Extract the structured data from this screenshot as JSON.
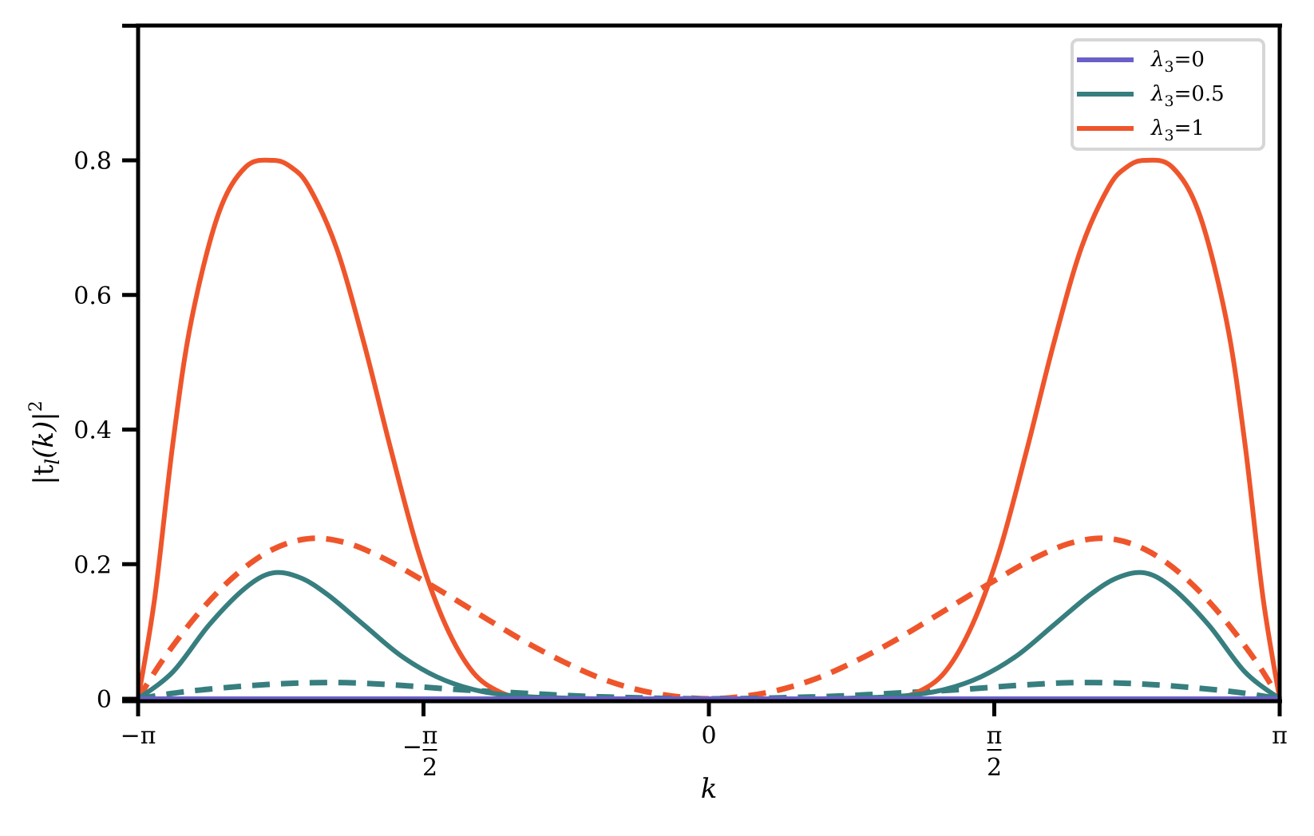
{
  "chart_data": {
    "type": "line",
    "title": "",
    "xlabel": "k",
    "ylabel": "|t_l(k)|^2",
    "xlim": [
      -3.14159,
      3.14159
    ],
    "ylim": [
      0,
      1.0
    ],
    "grid": false,
    "legend_position": "upper right",
    "x_ticks": [
      {
        "value": -3.14159,
        "label": "−π",
        "type": "plain"
      },
      {
        "value": -1.5708,
        "label": "−π/2",
        "type": "frac",
        "sign": "−",
        "num": "π",
        "den": "2"
      },
      {
        "value": 0,
        "label": "0",
        "type": "plain"
      },
      {
        "value": 1.5708,
        "label": "π/2",
        "type": "frac",
        "sign": "",
        "num": "π",
        "den": "2"
      },
      {
        "value": 3.14159,
        "label": "π",
        "type": "plain"
      }
    ],
    "y_ticks": [
      {
        "value": 0,
        "label": "0"
      },
      {
        "value": 0.2,
        "label": "0.2"
      },
      {
        "value": 0.4,
        "label": "0.4"
      },
      {
        "value": 0.6,
        "label": "0.6"
      },
      {
        "value": 0.8,
        "label": "0.8"
      },
      {
        "value": 1.0,
        "label": ""
      }
    ],
    "legend": [
      {
        "label": "λ₃=0",
        "color": "#6a5fc8"
      },
      {
        "label": "λ₃=0.5",
        "color": "#377e7f"
      },
      {
        "label": "λ₃=1",
        "color": "#ef552b"
      }
    ],
    "series": [
      {
        "name": "λ₃=0 (solid)",
        "style": "solid",
        "color": "#6a5fc8",
        "x": [
          -3.14159,
          3.14159
        ],
        "y": [
          0.0,
          0.0
        ]
      },
      {
        "name": "λ₃=0.5 (solid)",
        "style": "solid",
        "color": "#377e7f",
        "x": [
          -3.14159,
          -2.95,
          -2.75,
          -2.55,
          -2.4,
          -2.25,
          -2.1,
          -1.9,
          -1.7,
          -1.5,
          -1.3,
          -1.1,
          -0.9,
          -0.6,
          0,
          0.6,
          0.9,
          1.1,
          1.3,
          1.5,
          1.7,
          1.9,
          2.1,
          2.25,
          2.4,
          2.55,
          2.75,
          2.95,
          3.14159
        ],
        "y": [
          0.0,
          0.04,
          0.11,
          0.165,
          0.187,
          0.18,
          0.155,
          0.11,
          0.065,
          0.033,
          0.014,
          0.005,
          0.002,
          0.0,
          0.0,
          0.0,
          0.002,
          0.005,
          0.014,
          0.033,
          0.065,
          0.11,
          0.155,
          0.18,
          0.187,
          0.165,
          0.11,
          0.04,
          0.0
        ]
      },
      {
        "name": "λ₃=0.5 (dashed)",
        "style": "dashed",
        "color": "#377e7f",
        "x": [
          -3.14159,
          -2.9,
          -2.6,
          -2.3,
          -2.0,
          -1.7,
          -1.4,
          -1.0,
          -0.6,
          0,
          0.6,
          1.0,
          1.4,
          1.7,
          2.0,
          2.3,
          2.6,
          2.9,
          3.14159
        ],
        "y": [
          0.0,
          0.01,
          0.018,
          0.023,
          0.024,
          0.02,
          0.014,
          0.008,
          0.003,
          0.0,
          0.003,
          0.008,
          0.014,
          0.02,
          0.024,
          0.023,
          0.018,
          0.01,
          0.0
        ]
      },
      {
        "name": "λ₃=1 (solid)",
        "style": "solid",
        "color": "#ef552b",
        "x": [
          -3.14159,
          -3.05,
          -2.95,
          -2.85,
          -2.7,
          -2.55,
          -2.4,
          -2.3,
          -2.2,
          -2.05,
          -1.9,
          -1.75,
          -1.6,
          -1.45,
          -1.3,
          -1.15,
          -1.0,
          -0.85,
          0,
          0.85,
          1.0,
          1.15,
          1.3,
          1.45,
          1.6,
          1.75,
          1.9,
          2.05,
          2.2,
          2.3,
          2.4,
          2.55,
          2.7,
          2.85,
          2.95,
          3.05,
          3.14159
        ],
        "y": [
          0.0,
          0.15,
          0.38,
          0.56,
          0.72,
          0.79,
          0.8,
          0.79,
          0.76,
          0.67,
          0.53,
          0.37,
          0.22,
          0.11,
          0.04,
          0.01,
          0.0,
          0.0,
          0.0,
          0.0,
          0.0,
          0.01,
          0.04,
          0.11,
          0.22,
          0.37,
          0.53,
          0.67,
          0.76,
          0.79,
          0.8,
          0.79,
          0.72,
          0.56,
          0.38,
          0.15,
          0.0
        ]
      },
      {
        "name": "λ₃=1 (dashed)",
        "style": "dashed",
        "color": "#ef552b",
        "x": [
          -3.14159,
          -3.0,
          -2.8,
          -2.6,
          -2.4,
          -2.2,
          -2.0,
          -1.8,
          -1.6,
          -1.4,
          -1.2,
          -1.0,
          -0.8,
          -0.6,
          -0.4,
          -0.2,
          0,
          0.2,
          0.4,
          0.6,
          0.8,
          1.0,
          1.2,
          1.4,
          1.6,
          1.8,
          2.0,
          2.2,
          2.4,
          2.6,
          2.8,
          3.0,
          3.14159
        ],
        "y": [
          0.0,
          0.06,
          0.13,
          0.185,
          0.222,
          0.238,
          0.232,
          0.21,
          0.18,
          0.148,
          0.115,
          0.083,
          0.055,
          0.031,
          0.014,
          0.004,
          0.0,
          0.004,
          0.014,
          0.031,
          0.055,
          0.083,
          0.115,
          0.148,
          0.18,
          0.21,
          0.232,
          0.238,
          0.222,
          0.185,
          0.13,
          0.06,
          0.0
        ]
      }
    ]
  },
  "axes": {
    "xlabel": "k",
    "ylabel_main": "|t",
    "ylabel_sub": "l",
    "ylabel_rest": "(k)|",
    "ylabel_sup": "2"
  },
  "legend": {
    "items": [
      {
        "symbol": "λ",
        "sub": "3",
        "rest": "=0",
        "color": "#6a5fc8"
      },
      {
        "symbol": "λ",
        "sub": "3",
        "rest": "=0.5",
        "color": "#377e7f"
      },
      {
        "symbol": "λ",
        "sub": "3",
        "rest": "=1",
        "color": "#ef552b"
      }
    ]
  }
}
